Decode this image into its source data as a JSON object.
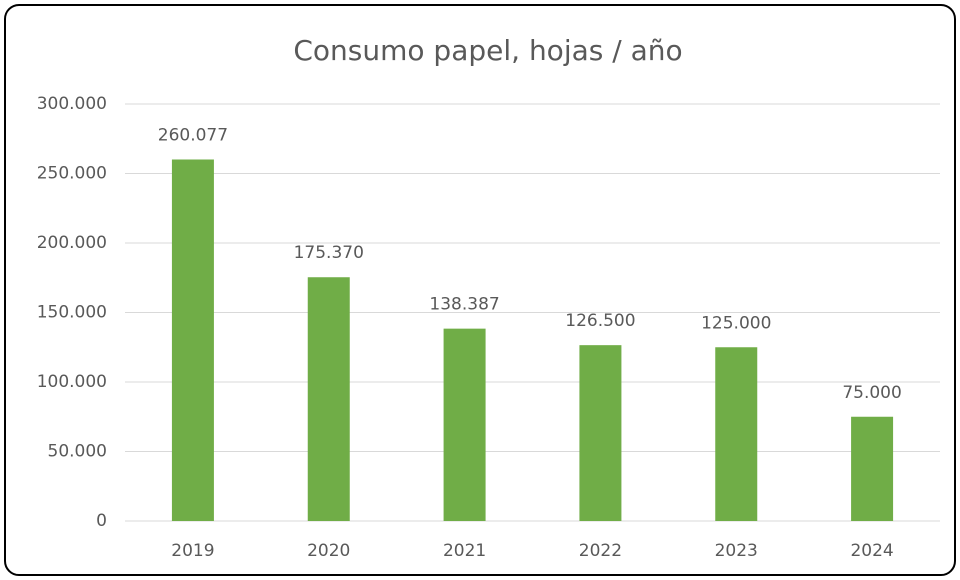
{
  "chart_data": {
    "type": "bar",
    "title": "Consumo papel, hojas / año",
    "categories": [
      "2019",
      "2020",
      "2021",
      "2022",
      "2023",
      "2024"
    ],
    "values": [
      260077,
      175370,
      138387,
      126500,
      125000,
      75000
    ],
    "value_labels": [
      "260.077",
      "175.370",
      "138.387",
      "126.500",
      "125.000",
      "75.000"
    ],
    "color": "#70ad47",
    "ylim": [
      0,
      300000
    ],
    "yticks": [
      0,
      {
        "value": 50000,
        "label": "50.000"
      },
      {
        "value": 100000,
        "label": "100.000"
      },
      {
        "value": 150000,
        "label": "150.000"
      },
      {
        "value": 200000,
        "label": "200.000"
      },
      {
        "value": 250000,
        "label": "250.000"
      },
      {
        "value": 300000,
        "label": "300.000"
      }
    ],
    "grid": true
  }
}
